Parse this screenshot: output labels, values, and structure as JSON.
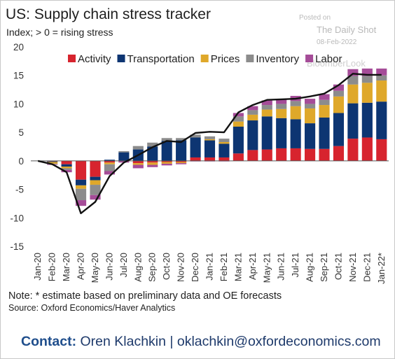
{
  "header": {
    "title": "US: Supply chain stress tracker",
    "subtitle": "Index; > 0 = rising stress"
  },
  "watermark": {
    "posted_on": "Posted on",
    "publisher": "The Daily Shot",
    "date": "08-Feb-2022",
    "ghost": "BloomberLook"
  },
  "footer": {
    "note": "Note: * estimate based on preliminary data and OE forecasts",
    "source": "Source: Oxford Economics/Haver Analytics",
    "contact_label": "Contact:",
    "contact_text": "Oren Klachkin | oklachkin@oxfordeconomics.com"
  },
  "chart_data": {
    "type": "bar",
    "stacked": true,
    "categories": [
      "Jan-20",
      "Feb-20",
      "Mar-20",
      "Apr-20",
      "May-20",
      "Jun-20",
      "Jul-20",
      "Aug-20",
      "Sep-20",
      "Oct-20",
      "Nov-20",
      "Dec-20",
      "Jan-21",
      "Feb-21",
      "Mar-21",
      "Apr-21",
      "May-21",
      "Jun-21",
      "Jul-21",
      "Aug-21",
      "Sep-21",
      "Oct-21",
      "Nov-21",
      "Dec-21",
      "Jan-22*"
    ],
    "tick_labels_shown": [
      "Jan-20",
      "Feb-20",
      "Mar-20",
      "Apr-20",
      "May-20",
      "Jun-20",
      "Jul-20",
      "Aug-20",
      "Sep-20",
      "Oct-20",
      "Nov-20",
      "Dec-20",
      "Jan-21",
      "Feb-21",
      "Mar-21",
      "Apr-21",
      "May-21",
      "Jun-21",
      "Jul-21",
      "Aug-21",
      "Sep-21",
      "Oct-21",
      "Nov-21",
      "Dec-21",
      "Jan-22*"
    ],
    "series": [
      {
        "name": "Activity",
        "color": "#d7242e",
        "values": [
          0,
          -0.1,
          -0.6,
          -3.3,
          -2.8,
          -0.3,
          0,
          -0.4,
          -0.3,
          -0.2,
          -0.2,
          0.6,
          0.6,
          0.6,
          1.3,
          1.9,
          2.0,
          2.2,
          2.2,
          2.1,
          2.1,
          2.6,
          3.9,
          4.1,
          3.8
        ]
      },
      {
        "name": "Transportation",
        "color": "#0d3572",
        "values": [
          0,
          -0.1,
          -0.4,
          -1.0,
          -0.6,
          0.2,
          1.5,
          2.0,
          2.5,
          3.5,
          3.6,
          3.5,
          3.0,
          2.4,
          4.7,
          5.2,
          5.8,
          5.3,
          5.1,
          4.5,
          5.5,
          5.8,
          6.2,
          6.1,
          6.6
        ]
      },
      {
        "name": "Prices",
        "color": "#dfa82a",
        "values": [
          0,
          -0.3,
          -0.3,
          -0.6,
          -0.8,
          -0.3,
          0,
          -0.3,
          -0.4,
          -0.3,
          -0.2,
          0,
          0.2,
          0.3,
          0.9,
          1.0,
          1.2,
          1.6,
          2.3,
          2.6,
          2.2,
          2.9,
          3.3,
          3.5,
          3.7
        ]
      },
      {
        "name": "Inventory",
        "color": "#8c8c8c",
        "values": [
          0,
          -0.1,
          -0.3,
          -2.0,
          -1.8,
          -1.2,
          0.2,
          0.6,
          0.7,
          0.5,
          0.4,
          0.5,
          0.5,
          0.6,
          0.9,
          0.8,
          0.8,
          0.9,
          0.9,
          0.8,
          0.9,
          1.0,
          1.5,
          1.2,
          0.9
        ]
      },
      {
        "name": "Labor",
        "color": "#a54c98",
        "values": [
          0,
          -0.1,
          -0.4,
          -1.0,
          -0.8,
          -0.6,
          -0.3,
          -0.6,
          -0.4,
          -0.3,
          -0.2,
          -0.1,
          -0.1,
          -0.1,
          0.6,
          0.7,
          0.8,
          0.9,
          0.9,
          0.9,
          1.0,
          1.1,
          1.2,
          1.3,
          1.2
        ]
      }
    ],
    "line": {
      "name": "Total",
      "color": "#111111",
      "values": [
        0,
        -0.6,
        -2.0,
        -9.2,
        -7.2,
        -2.7,
        -0.3,
        1.0,
        2.4,
        3.5,
        3.3,
        4.9,
        5.1,
        5.0,
        8.5,
        9.8,
        10.7,
        10.8,
        10.9,
        11.3,
        11.8,
        13.3,
        15.3,
        15.1,
        15.1
      ]
    },
    "ylim": [
      -15,
      20
    ],
    "yticks": [
      -15,
      -10,
      -5,
      0,
      5,
      10,
      15,
      20
    ],
    "legend_position": "top",
    "grid": false
  }
}
